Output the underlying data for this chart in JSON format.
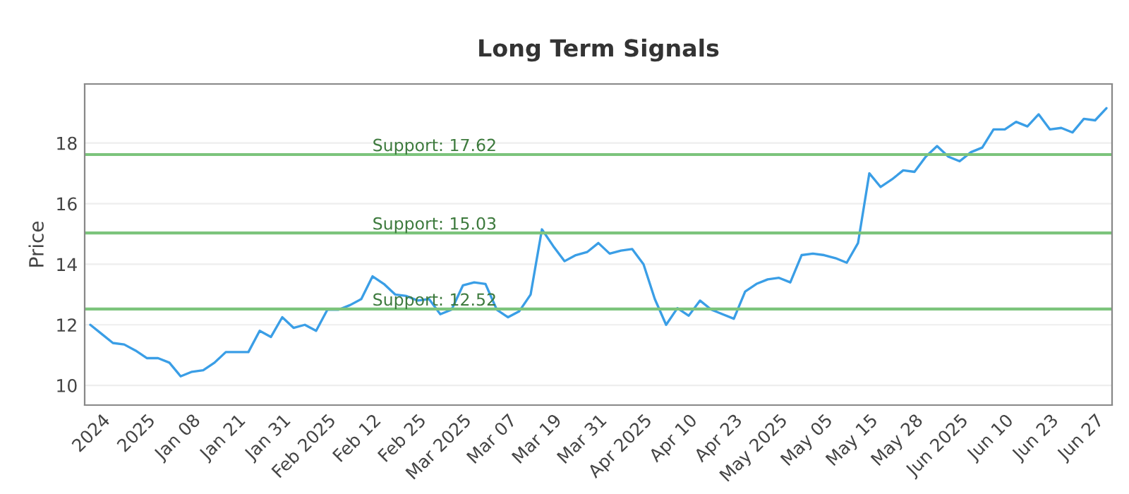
{
  "chart_data": {
    "type": "line",
    "title": "Long Term Signals",
    "ylabel": "Price",
    "categories": [
      null,
      "2024",
      null,
      null,
      null,
      "2025",
      null,
      null,
      null,
      "Jan 08",
      null,
      null,
      null,
      "Jan 21",
      null,
      null,
      null,
      "Jan 31",
      null,
      null,
      null,
      "Feb 2025",
      null,
      null,
      null,
      "Feb 12",
      null,
      null,
      null,
      "Feb 25",
      null,
      null,
      null,
      "Mar 2025",
      null,
      null,
      null,
      "Mar 07",
      null,
      null,
      null,
      "Mar 19",
      null,
      null,
      null,
      "Mar 31",
      null,
      null,
      null,
      "Apr 2025",
      null,
      null,
      null,
      "Apr 10",
      null,
      null,
      null,
      "Apr 23",
      null,
      null,
      null,
      "May 2025",
      null,
      null,
      null,
      "May 05",
      null,
      null,
      null,
      "May 15",
      null,
      null,
      null,
      "May 28",
      null,
      null,
      null,
      "Jun 2025",
      null,
      null,
      null,
      "Jun 10",
      null,
      null,
      null,
      "Jun 23",
      null,
      null,
      null,
      "Jun 27",
      null
    ],
    "series": [
      {
        "color": "#3a9ee6",
        "values": [
          12.0,
          11.7,
          11.4,
          11.35,
          11.15,
          10.9,
          10.9,
          10.75,
          10.3,
          10.45,
          10.5,
          10.75,
          11.1,
          11.1,
          11.1,
          11.8,
          11.6,
          12.25,
          11.9,
          12.0,
          11.8,
          12.5,
          12.5,
          12.65,
          12.85,
          13.6,
          13.35,
          13.0,
          12.95,
          12.8,
          12.85,
          12.35,
          12.5,
          13.3,
          13.4,
          13.35,
          12.5,
          12.25,
          12.45,
          13.0,
          15.15,
          14.6,
          14.1,
          14.3,
          14.4,
          14.7,
          14.35,
          14.45,
          14.5,
          14.0,
          12.85,
          12.0,
          12.55,
          12.3,
          12.8,
          12.5,
          12.35,
          12.2,
          13.1,
          13.35,
          13.5,
          13.55,
          13.4,
          14.3,
          14.35,
          14.3,
          14.2,
          14.05,
          14.7,
          17.0,
          16.55,
          16.8,
          17.1,
          17.05,
          17.55,
          17.9,
          17.55,
          17.4,
          17.7,
          17.85,
          18.45,
          18.45,
          18.7,
          18.55,
          18.95,
          18.45,
          18.5,
          18.35,
          18.8,
          18.75,
          19.15
        ]
      }
    ],
    "ylim": [
      9.35,
      19.95
    ],
    "yticks": [
      10,
      12,
      14,
      16,
      18
    ],
    "grid": "y",
    "ref_lines": [
      {
        "axis": "y",
        "value": 17.62,
        "label": "Support: 17.62",
        "color": "#7cc47c"
      },
      {
        "axis": "y",
        "value": 15.03,
        "label": "Support: 15.03",
        "color": "#7cc47c"
      },
      {
        "axis": "y",
        "value": 12.52,
        "label": "Support: 12.52",
        "color": "#7cc47c"
      }
    ]
  }
}
